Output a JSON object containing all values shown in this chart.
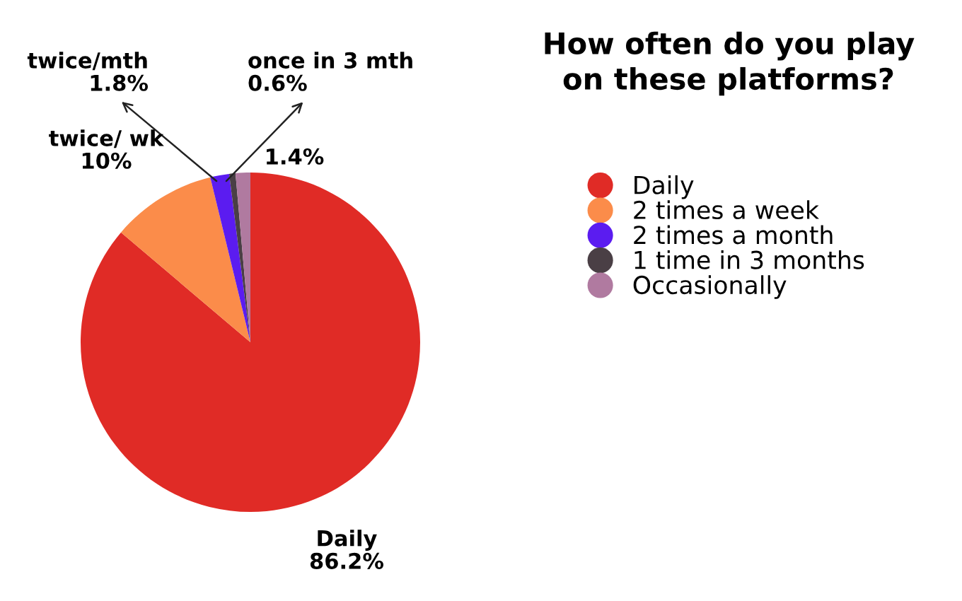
{
  "chart_data": {
    "type": "pie",
    "title": "How often do you play\non these platforms?",
    "categories": [
      "Daily",
      "2 times a week",
      "2 times a month",
      "1 time in 3 months",
      "Occasionally"
    ],
    "values": [
      86.2,
      10,
      1.8,
      0.6,
      1.4
    ],
    "colors": [
      "#e02b26",
      "#fb8c4a",
      "#5b1cf0",
      "#4a3f45",
      "#b07aa0"
    ],
    "value_labels": [
      "Daily\n86.2%",
      "twice/ wk\n10%",
      "twice/mth\n1.8%",
      "once in 3 mth\n0.6%",
      "1.4%"
    ],
    "legend": "right"
  }
}
